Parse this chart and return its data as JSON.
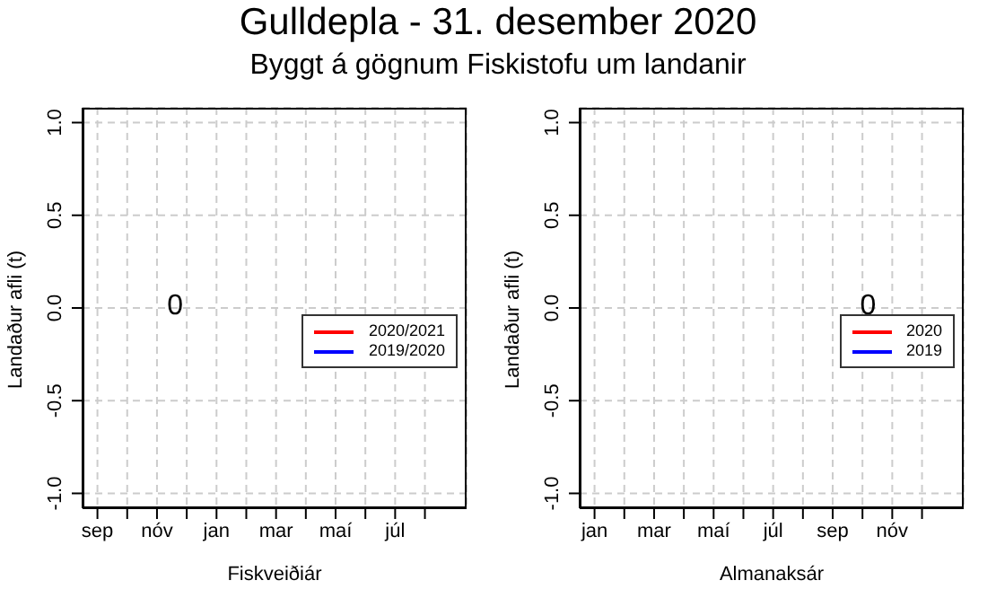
{
  "chart_data": [
    {
      "type": "line",
      "title": "Gulldepla - 31. desember 2020",
      "subtitle": "Byggt á gögnum Fiskistofu um landanir",
      "xlabel": "Fiskveiðiár",
      "ylabel": "Landaður afli (t)",
      "categories": [
        "sep",
        null,
        "nóv",
        null,
        "jan",
        null,
        "mar",
        null,
        "maí",
        null,
        "júl",
        null
      ],
      "series": [
        {
          "name": "2020/2021",
          "color": "#ff0000",
          "values": [
            null,
            null,
            null,
            null,
            null,
            null,
            null,
            null,
            null,
            null,
            null,
            null
          ]
        },
        {
          "name": "2019/2020",
          "color": "#0000ff",
          "values": [
            null,
            null,
            null,
            null,
            null,
            null,
            null,
            null,
            null,
            null,
            null,
            null
          ]
        }
      ],
      "ylim": [
        -1.08,
        1.08
      ],
      "yticks": [
        {
          "value": -1,
          "label": "-1.0"
        },
        {
          "value": -0.5,
          "label": "-0.5"
        },
        {
          "value": 0,
          "label": "0.0"
        },
        {
          "value": 0.5,
          "label": "0.5"
        },
        {
          "value": 1,
          "label": "1.0"
        }
      ],
      "annotations": [
        "0"
      ],
      "grid": true,
      "legend": "right"
    },
    {
      "type": "line",
      "xlabel": "Almanaksár",
      "ylabel": "Landaður afli (t)",
      "categories": [
        "jan",
        null,
        "mar",
        null,
        "maí",
        null,
        "júl",
        null,
        "sep",
        null,
        "nóv",
        null
      ],
      "series": [
        {
          "name": "2020",
          "color": "#ff0000",
          "values": [
            null,
            null,
            null,
            null,
            null,
            null,
            null,
            null,
            null,
            null,
            null,
            null
          ]
        },
        {
          "name": "2019",
          "color": "#0000ff",
          "values": [
            null,
            null,
            null,
            null,
            null,
            null,
            null,
            null,
            null,
            null,
            null,
            null
          ]
        }
      ],
      "ylim": [
        -1.08,
        1.08
      ],
      "yticks": [
        {
          "value": -1,
          "label": "-1.0"
        },
        {
          "value": -0.5,
          "label": "-0.5"
        },
        {
          "value": 0,
          "label": "0.0"
        },
        {
          "value": 0.5,
          "label": "0.5"
        },
        {
          "value": 1,
          "label": "1.0"
        }
      ],
      "annotations": [
        "0"
      ],
      "grid": true,
      "legend": "right"
    }
  ]
}
